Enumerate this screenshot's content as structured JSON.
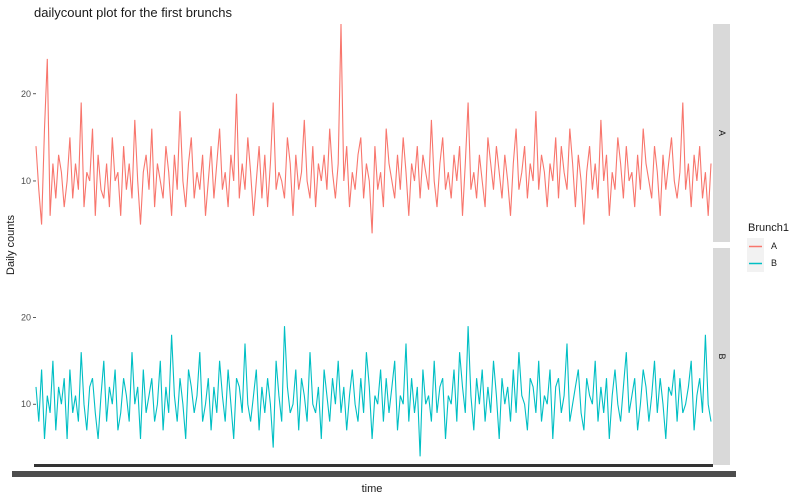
{
  "chart_data": {
    "type": "line",
    "title": "dailycount plot for the first brunchs",
    "xlabel": "time",
    "ylabel": "Daily counts",
    "ylim": [
      3,
      28
    ],
    "yticks": [
      10,
      20
    ],
    "legend": {
      "title": "Brunch1",
      "placement": "right",
      "entries": [
        {
          "label": "A",
          "color": "#F8766D"
        },
        {
          "label": "B",
          "color": "#00BFC4"
        }
      ]
    },
    "series": [
      {
        "name": "A",
        "color": "#F8766D",
        "values": [
          14,
          9,
          5,
          16,
          24,
          6,
          12,
          8,
          13,
          11,
          7,
          10,
          15,
          8,
          12,
          9,
          19,
          7,
          11,
          10,
          16,
          6,
          13,
          9,
          8,
          12,
          7,
          15,
          10,
          11,
          6,
          14,
          9,
          12,
          8,
          17,
          10,
          5,
          11,
          13,
          9,
          16,
          7,
          12,
          10,
          8,
          14,
          11,
          6,
          13,
          9,
          18,
          10,
          7,
          12,
          15,
          8,
          11,
          9,
          13,
          6,
          10,
          14,
          8,
          12,
          16,
          9,
          11,
          7,
          13,
          10,
          20,
          8,
          12,
          9,
          15,
          11,
          6,
          10,
          14,
          8,
          13,
          7,
          12,
          19,
          9,
          11,
          10,
          8,
          15,
          12,
          6,
          13,
          9,
          11,
          17,
          10,
          8,
          14,
          7,
          12,
          10,
          13,
          9,
          16,
          11,
          8,
          12,
          28,
          10,
          14,
          7,
          11,
          9,
          13,
          15,
          8,
          12,
          10,
          4,
          14,
          9,
          11,
          7,
          16,
          12,
          10,
          8,
          13,
          9,
          15,
          11,
          6,
          12,
          10,
          14,
          8,
          13,
          11,
          9,
          17,
          10,
          7,
          12,
          15,
          9,
          11,
          8,
          13,
          10,
          14,
          6,
          12,
          19,
          9,
          11,
          8,
          13,
          10,
          7,
          15,
          12,
          9,
          14,
          11,
          8,
          13,
          10,
          6,
          12,
          16,
          9,
          11,
          14,
          8,
          12,
          10,
          18,
          9,
          13,
          11,
          7,
          12,
          10,
          15,
          8,
          14,
          11,
          9,
          16,
          12,
          7,
          13,
          10,
          5,
          11,
          14,
          9,
          12,
          8,
          17,
          10,
          13,
          6,
          11,
          9,
          15,
          12,
          8,
          14,
          10,
          11,
          7,
          13,
          9,
          16,
          12,
          10,
          8,
          14,
          11,
          6,
          13,
          9,
          12,
          15,
          10,
          8,
          11,
          19,
          9,
          12,
          7,
          13,
          10,
          14,
          8,
          11,
          6,
          12
        ]
      },
      {
        "name": "B",
        "color": "#00BFC4",
        "values": [
          12,
          8,
          14,
          6,
          11,
          9,
          15,
          7,
          12,
          10,
          13,
          6,
          14,
          9,
          11,
          8,
          16,
          10,
          7,
          12,
          13,
          9,
          6,
          11,
          15,
          8,
          12,
          10,
          14,
          7,
          9,
          13,
          11,
          8,
          16,
          10,
          12,
          6,
          14,
          9,
          11,
          13,
          8,
          10,
          15,
          7,
          12,
          9,
          18,
          11,
          8,
          13,
          10,
          6,
          14,
          12,
          9,
          11,
          16,
          8,
          10,
          13,
          7,
          12,
          9,
          15,
          11,
          8,
          14,
          10,
          6,
          13,
          12,
          9,
          17,
          10,
          8,
          11,
          14,
          7,
          12,
          9,
          13,
          10,
          5,
          15,
          11,
          8,
          19,
          12,
          9,
          10,
          14,
          7,
          13,
          11,
          8,
          16,
          10,
          9,
          12,
          6,
          14,
          11,
          8,
          13,
          10,
          15,
          9,
          12,
          7,
          11,
          14,
          10,
          8,
          13,
          9,
          16,
          12,
          6,
          11,
          10,
          14,
          8,
          13,
          9,
          12,
          15,
          7,
          11,
          10,
          17,
          8,
          13,
          9,
          12,
          4,
          14,
          10,
          11,
          8,
          15,
          9,
          12,
          13,
          6,
          11,
          10,
          14,
          8,
          16,
          12,
          9,
          19,
          11,
          7,
          13,
          10,
          14,
          8,
          12,
          9,
          15,
          11,
          6,
          13,
          10,
          12,
          8,
          14,
          9,
          16,
          11,
          10,
          7,
          13,
          12,
          9,
          15,
          8,
          11,
          10,
          14,
          6,
          12,
          13,
          9,
          11,
          17,
          8,
          10,
          12,
          14,
          9,
          7,
          13,
          11,
          10,
          15,
          8,
          12,
          9,
          13,
          6,
          11,
          14,
          10,
          8,
          12,
          16,
          9,
          11,
          13,
          7,
          10,
          14,
          12,
          8,
          11,
          15,
          9,
          13,
          10,
          6,
          12,
          11,
          14,
          8,
          13,
          9,
          10,
          12,
          15,
          7,
          11,
          13,
          9,
          18,
          10,
          8
        ]
      }
    ]
  }
}
